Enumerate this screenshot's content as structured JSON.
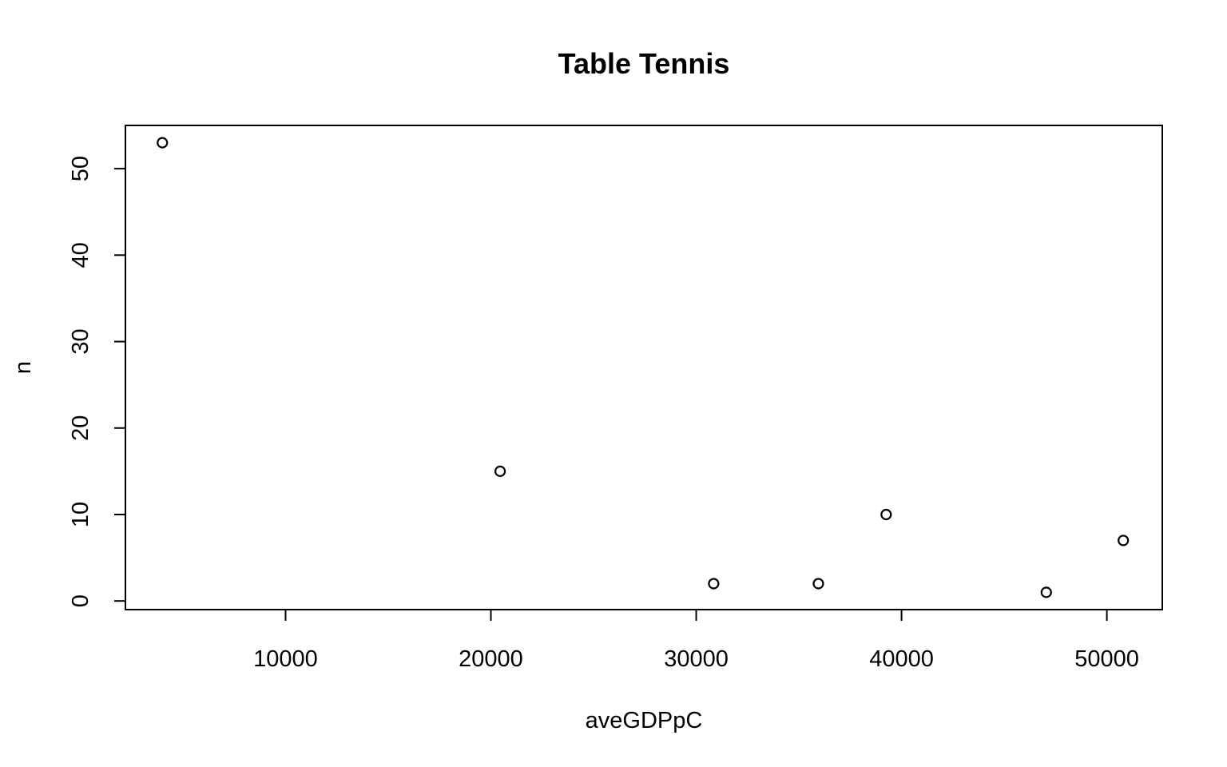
{
  "chart_data": {
    "type": "scatter",
    "title": "Table Tennis",
    "xlabel": "aveGDPpC",
    "ylabel": "n",
    "xlim": [
      2200,
      52700
    ],
    "ylim": [
      -1.0,
      55.0
    ],
    "x_ticks": [
      10000,
      20000,
      30000,
      40000,
      50000
    ],
    "y_ticks": [
      0,
      10,
      20,
      30,
      40,
      50
    ],
    "grid": false,
    "point_shape": "open-circle",
    "series": [
      {
        "points": [
          {
            "x": 4000,
            "y": 53
          },
          {
            "x": 20450,
            "y": 15
          },
          {
            "x": 30850,
            "y": 2
          },
          {
            "x": 35950,
            "y": 2
          },
          {
            "x": 39250,
            "y": 10
          },
          {
            "x": 47050,
            "y": 1
          },
          {
            "x": 50800,
            "y": 7
          }
        ]
      }
    ]
  }
}
